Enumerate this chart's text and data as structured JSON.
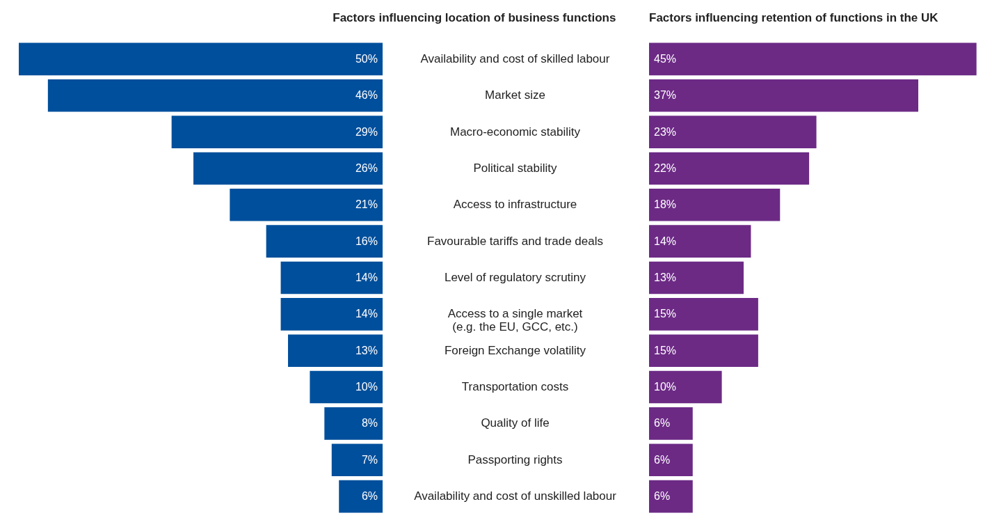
{
  "chart_data": [
    {
      "type": "bar",
      "orientation": "horizontal",
      "title": "Factors influencing location of business functions",
      "categories": [
        "Availability and cost of skilled labour",
        "Market size",
        "Macro-economic stability",
        "Political stability",
        "Access to infrastructure",
        "Favourable tariffs and trade deals",
        "Level of regulatory scrutiny",
        "Access to a single market\n(e.g. the EU, GCC, etc.)",
        "Foreign Exchange volatility",
        "Transportation costs",
        "Quality of life",
        "Passporting rights",
        "Availability and cost of unskilled labour"
      ],
      "values": [
        50,
        46,
        29,
        26,
        21,
        16,
        14,
        14,
        13,
        10,
        8,
        7,
        6
      ],
      "value_labels": [
        "50%",
        "46%",
        "29%",
        "26%",
        "21%",
        "16%",
        "14%",
        "14%",
        "13%",
        "10%",
        "8%",
        "7%",
        "6%"
      ],
      "color": "#004f9c",
      "tick_labels": "y"
    },
    {
      "type": "bar",
      "orientation": "horizontal",
      "title": "Factors influencing retention of functions in the UK",
      "categories": [
        null,
        null,
        null,
        null,
        null,
        null,
        null,
        null,
        null,
        null,
        null,
        null,
        null
      ],
      "values": [
        45,
        37,
        23,
        22,
        18,
        14,
        13,
        15,
        15,
        10,
        6,
        6,
        6
      ],
      "value_labels": [
        "45%",
        "37%",
        "23%",
        "22%",
        "18%",
        "14%",
        "13%",
        "15%",
        "15%",
        "10%",
        "6%",
        "6%",
        "6%"
      ],
      "color": "#6c2a85",
      "tick_labels": false
    }
  ]
}
